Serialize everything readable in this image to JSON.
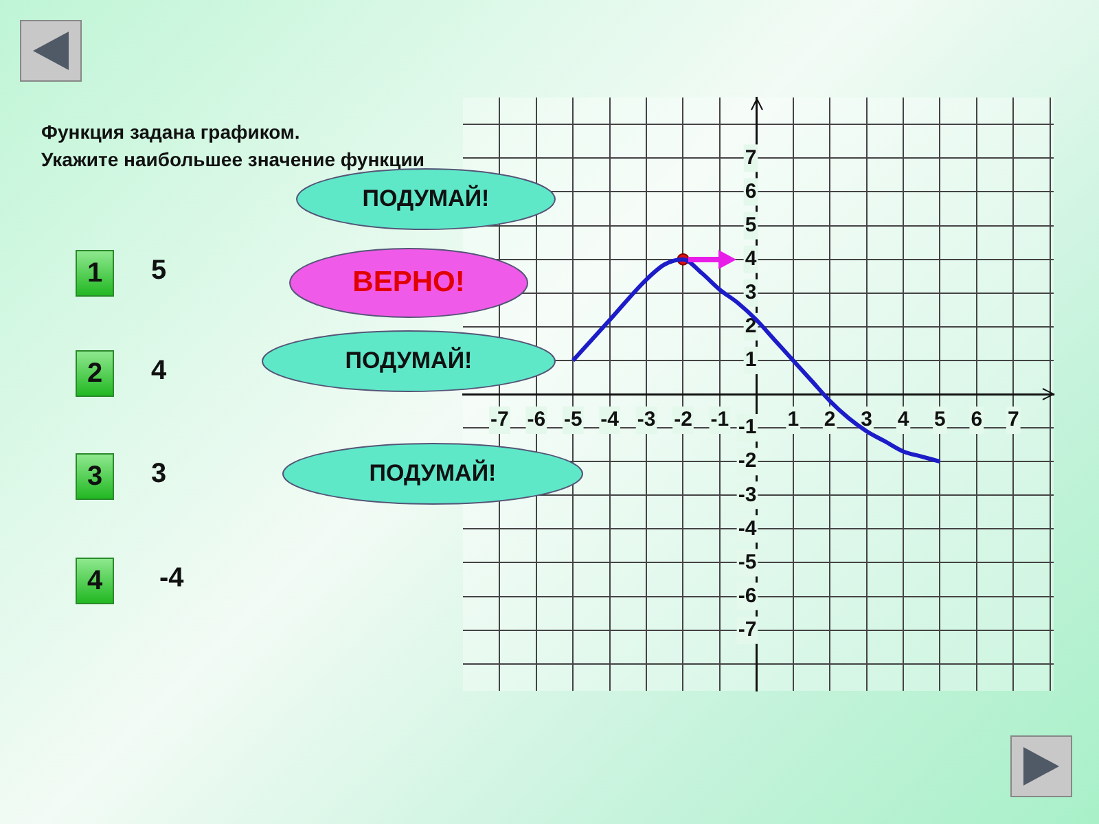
{
  "chart_data": {
    "type": "line",
    "title": "Функция задана графиком.",
    "subtitle": "Укажите наибольшее значение функции",
    "x": [
      -5,
      -4.5,
      -4,
      -3,
      -2.5,
      -2,
      -1.5,
      -1,
      -0.5,
      0,
      0.5,
      1,
      1.5,
      2,
      2.5,
      3,
      3.5,
      4,
      4.5,
      5
    ],
    "series": [
      {
        "color": "#1c1cc8",
        "values": [
          1,
          1.6,
          2.2,
          3.4,
          3.85,
          4,
          3.6,
          3.1,
          2.7,
          2.2,
          1.6,
          1,
          0.4,
          -0.2,
          -0.7,
          -1.1,
          -1.4,
          -1.7,
          -1.85,
          -2
        ]
      },
      {
        "type": "scatter",
        "marker": "circle",
        "color": "#e01010",
        "x": [
          -2
        ],
        "values": [
          4
        ]
      }
    ],
    "xlim": [
      -8,
      8.1
    ],
    "ylim": [
      -8.8,
      8.8
    ],
    "xticks": [
      -7,
      -6,
      -5,
      -4,
      -3,
      -2,
      -1,
      1,
      2,
      3,
      4,
      5,
      6,
      7,
      {
        "value": 8,
        "label": null
      }
    ],
    "yticks": [
      {
        "value": -8,
        "label": null
      },
      -7,
      -6,
      -5,
      -4,
      -3,
      -2,
      -1,
      1,
      2,
      3,
      4,
      5,
      6,
      7,
      {
        "value": 8,
        "label": null
      }
    ],
    "grid": true,
    "legend": false,
    "marker": "none",
    "annotations": [
      "1",
      "5",
      "2",
      "4",
      "3",
      "3",
      "4",
      "-4",
      "ПОДУМАЙ!",
      "ВЕРНО!",
      "ПОДУМАЙ!",
      "ПОДУМАЙ!"
    ]
  }
}
